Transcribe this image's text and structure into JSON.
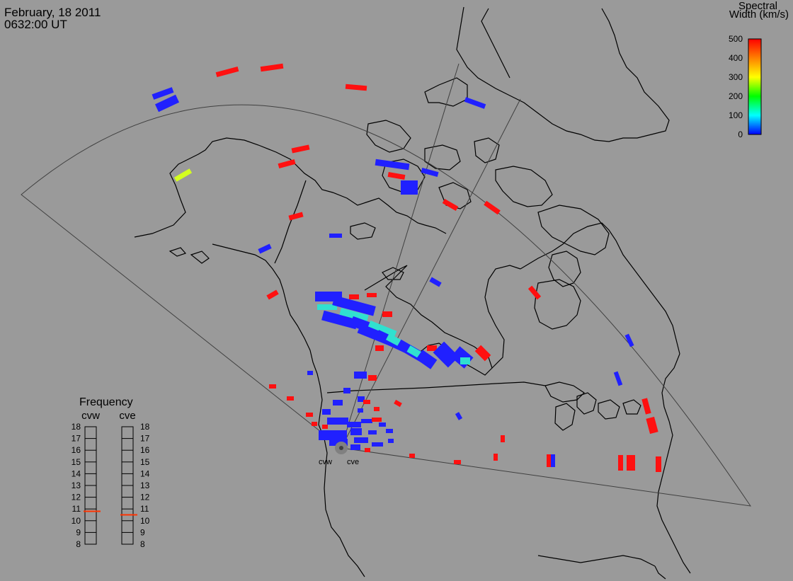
{
  "header": {
    "date": "February, 18 2011",
    "time": "0632:00 UT"
  },
  "colorbar": {
    "title_line1": "Spectral",
    "title_line2": "Width (km/s)",
    "ticks": [
      "500",
      "400",
      "300",
      "200",
      "100",
      "0"
    ],
    "colors": [
      "#ff0000",
      "#ff8000",
      "#ffff00",
      "#00ff00",
      "#00ffff",
      "#0000ff"
    ]
  },
  "frequency_panel": {
    "title": "Frequency",
    "columns": [
      "cvw",
      "cve"
    ],
    "ticks": [
      "18",
      "17",
      "16",
      "15",
      "14",
      "13",
      "12",
      "11",
      "10",
      "9",
      "8"
    ],
    "cvw_value_mhz": 10.8,
    "cve_value_mhz": 10.5,
    "marker_color": "#ff3300"
  },
  "radars": [
    {
      "name": "cvw"
    },
    {
      "name": "cve"
    }
  ],
  "colors": {
    "background": "#9a9a9a",
    "coastline": "#000000",
    "fov": "#404040",
    "low_width": "#2020ff",
    "high_width": "#ff1010",
    "mid_cyan": "#30e0d0"
  }
}
